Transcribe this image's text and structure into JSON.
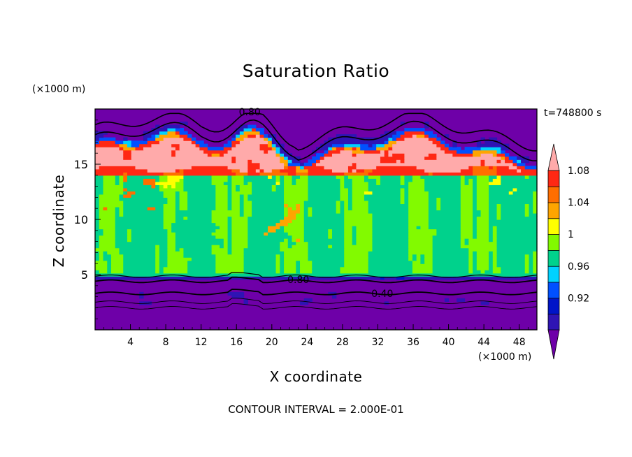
{
  "chart_data": {
    "type": "heatmap",
    "title": "Saturation Ratio",
    "xlabel": "X coordinate",
    "ylabel": "Z coordinate",
    "x_unit": "(×1000 m)",
    "y_unit": "(×1000 m)",
    "time_label": "t=748800 s",
    "footer": "CONTOUR INTERVAL = 2.000E-01",
    "xlim": [
      0,
      50
    ],
    "ylim": [
      0,
      20
    ],
    "x_ticks": [
      "4",
      "8",
      "12",
      "16",
      "20",
      "24",
      "28",
      "32",
      "36",
      "40",
      "44",
      "48"
    ],
    "y_ticks": [
      "5",
      "10",
      "15"
    ],
    "colorbar": {
      "levels": [
        "0.92",
        "0.96",
        "1",
        "1.04",
        "1.08"
      ],
      "colors": [
        "#6e00a8",
        "#2f14b4",
        "#0014c8",
        "#0050ff",
        "#00d2ff",
        "#00d28c",
        "#82fa00",
        "#ffff00",
        "#ffa500",
        "#ff6e00",
        "#ff2814",
        "#ffaaaa"
      ]
    },
    "contour_labels": [
      "0.80",
      "0.80",
      "0.40"
    ]
  }
}
